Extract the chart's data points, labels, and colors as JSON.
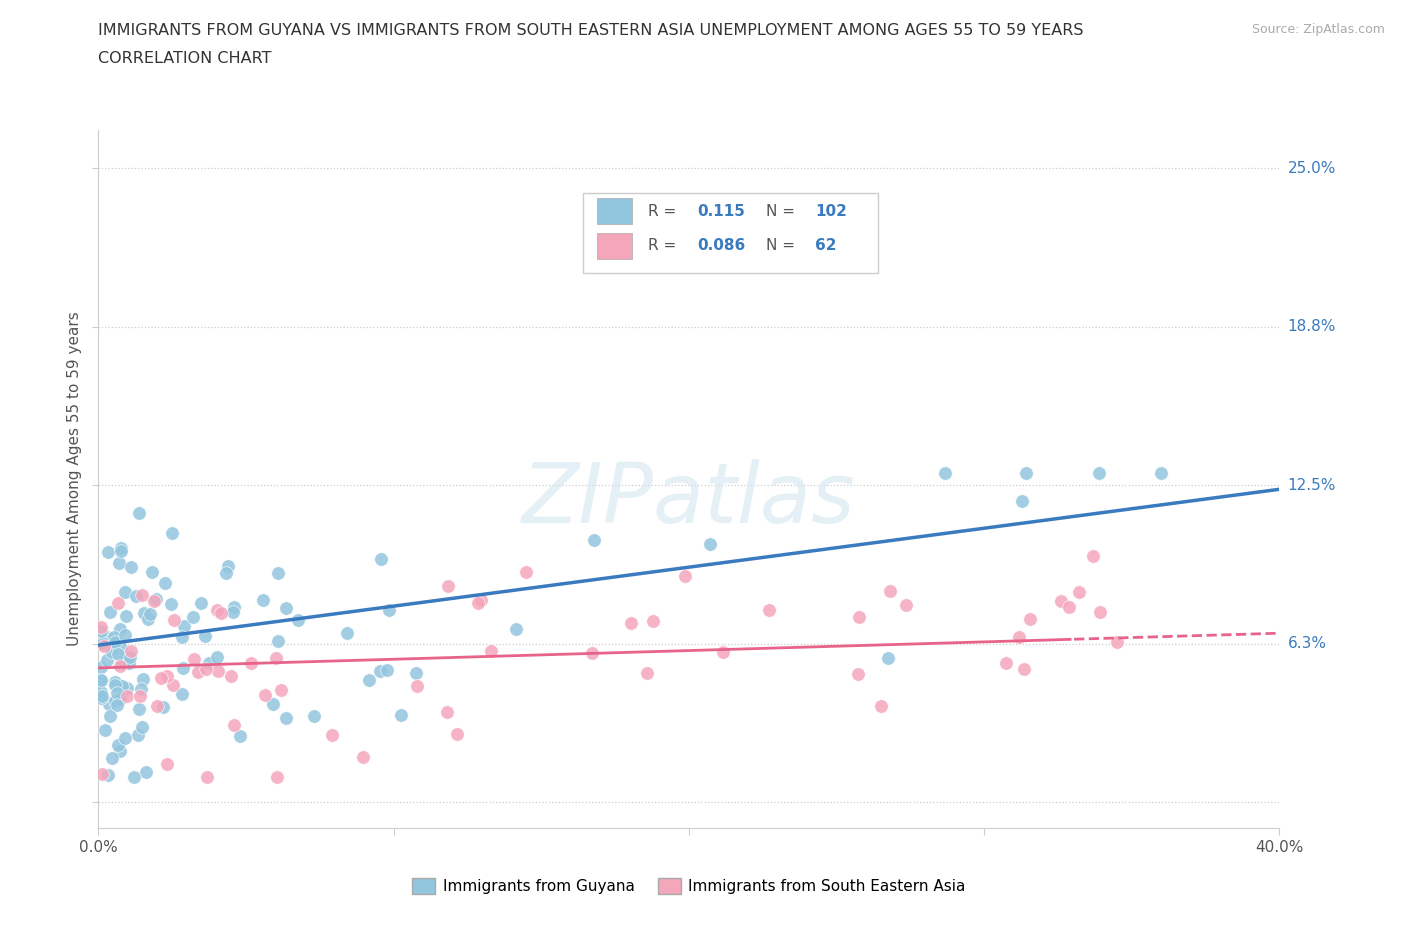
{
  "title_line1": "IMMIGRANTS FROM GUYANA VS IMMIGRANTS FROM SOUTH EASTERN ASIA UNEMPLOYMENT AMONG AGES 55 TO 59 YEARS",
  "title_line2": "CORRELATION CHART",
  "source": "Source: ZipAtlas.com",
  "ylabel": "Unemployment Among Ages 55 to 59 years",
  "xlim": [
    0,
    0.4
  ],
  "ylim": [
    -0.01,
    0.265
  ],
  "yticks": [
    0.0,
    0.0625,
    0.125,
    0.1875,
    0.25
  ],
  "ytick_labels": [
    "",
    "6.3%",
    "12.5%",
    "18.8%",
    "25.0%"
  ],
  "xticks": [
    0.0,
    0.1,
    0.2,
    0.3,
    0.4
  ],
  "xtick_labels": [
    "0.0%",
    "",
    "",
    "",
    "40.0%"
  ],
  "legend_guyana_r": "0.115",
  "legend_guyana_n": "102",
  "legend_sea_r": "0.086",
  "legend_sea_n": "62",
  "guyana_color": "#92c5de",
  "sea_color": "#f4a6bb",
  "guyana_line_color": "#3a7bbf",
  "sea_line_color": "#e8638a",
  "watermark_text": "ZIPatlas",
  "background_color": "#ffffff",
  "legend_text_color": "#333333",
  "legend_value_color": "#3a7bbf",
  "legend_sea_value_color": "#e8638a",
  "source_color": "#aaaaaa"
}
